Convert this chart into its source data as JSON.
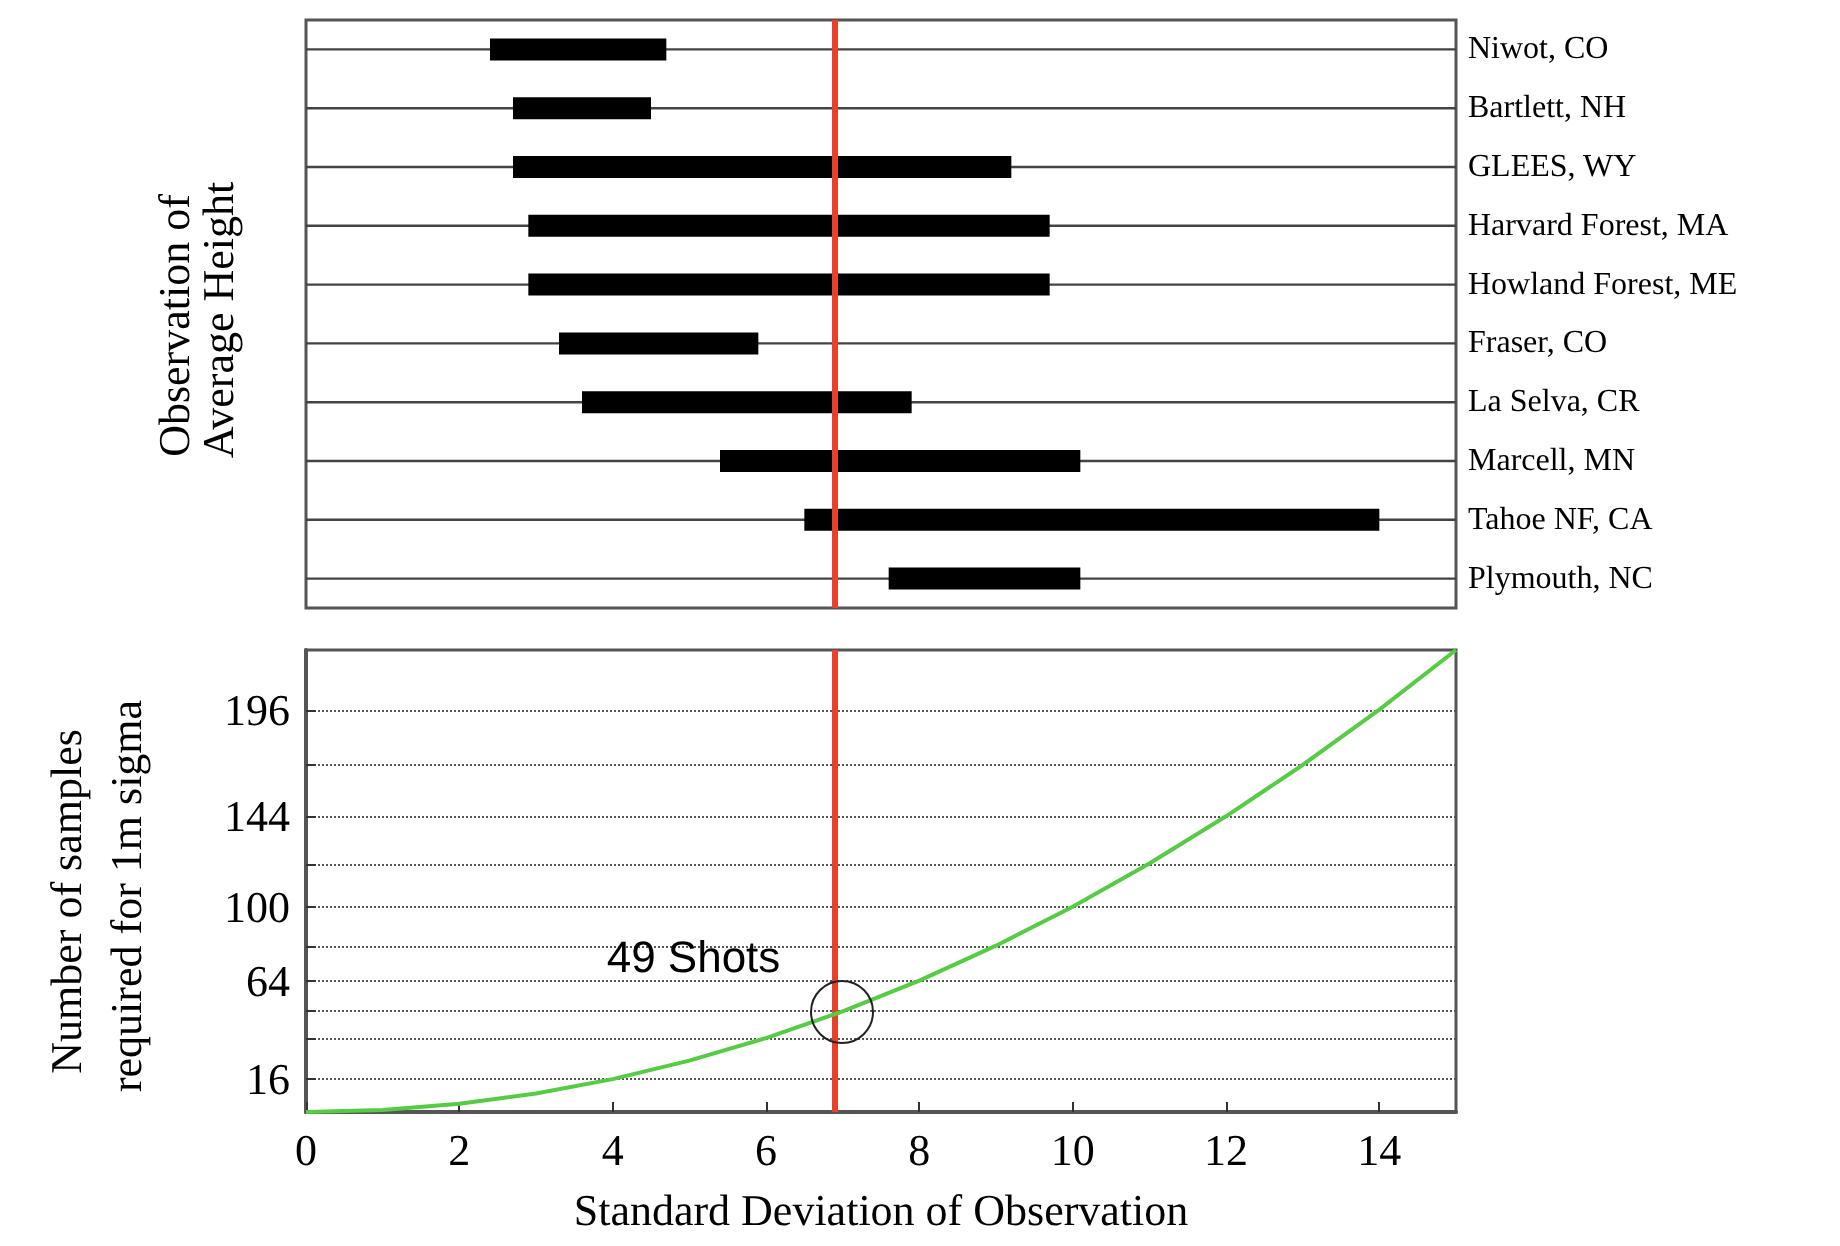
{
  "chart_data": [
    {
      "type": "bar",
      "orientation": "horizontal",
      "ylabel": "Observation of Average Height",
      "categories": [
        "Niwot, CO",
        "Bartlett, NH",
        "GLEES, WY",
        "Harvard Forest, MA",
        "Howland Forest, ME",
        "Fraser, CO",
        "La Selva, CR",
        "Marcell, MN",
        "Tahoe NF, CA",
        "Plymouth, NC"
      ],
      "base": [
        2.4,
        2.7,
        2.7,
        2.9,
        2.9,
        3.3,
        3.6,
        5.4,
        6.5,
        7.6
      ],
      "values": [
        2.3,
        1.8,
        6.5,
        6.8,
        6.8,
        2.6,
        4.3,
        4.7,
        7.5,
        2.5
      ],
      "color": "#000000",
      "xlim": [
        0,
        15
      ],
      "tick_labels": "y",
      "grid": true,
      "ref_lines": [
        {
          "axis": "x",
          "value": 6.9,
          "label": null,
          "color": "#e8402a"
        }
      ]
    },
    {
      "type": "line",
      "xlabel": "Standard Deviation of Observation",
      "ylabel": "Number of samples required for 1m sigma",
      "x": [
        0,
        1,
        2,
        3,
        4,
        5,
        6,
        7,
        8,
        9,
        10,
        11,
        12,
        13,
        14,
        15
      ],
      "series": [
        {
          "color": "#55cc44",
          "values": [
            0,
            1,
            4,
            9,
            16,
            25,
            36,
            49,
            64,
            81,
            100,
            121,
            144,
            169,
            196,
            225
          ]
        }
      ],
      "xlim": [
        0,
        15
      ],
      "xticks": [
        0,
        2,
        4,
        6,
        8,
        10,
        12,
        14
      ],
      "ylim": [
        0,
        225
      ],
      "yticks": [
        16,
        {
          "value": 36,
          "label": null
        },
        {
          "value": 49,
          "label": null
        },
        64,
        {
          "value": 81,
          "label": null
        },
        100,
        {
          "value": 121,
          "label": null
        },
        144,
        {
          "value": 169,
          "label": null
        },
        196
      ],
      "grid": "y",
      "marker": "none",
      "line_style": "solid",
      "ref_lines": [
        {
          "axis": "x",
          "value": 6.9,
          "label": null,
          "color": "#e8402a"
        }
      ],
      "annotations": [
        {
          "text": "49 Shots",
          "x": 7,
          "y": 49
        }
      ]
    }
  ]
}
